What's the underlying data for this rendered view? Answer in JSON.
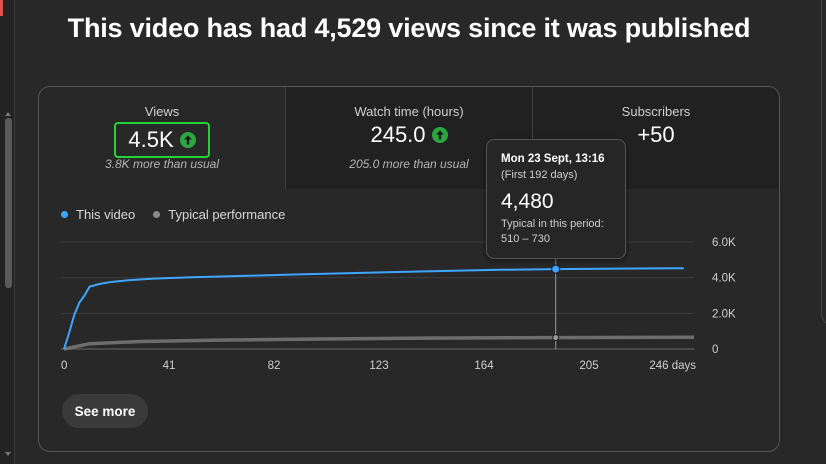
{
  "headline": "This video has had 4,529 views since it was published",
  "metrics": [
    {
      "label": "Views",
      "value": "4.5K",
      "sub": "3.8K more than usual",
      "trend_icon": "arrow-up-circle-icon"
    },
    {
      "label": "Watch time (hours)",
      "value": "245.0",
      "sub": "205.0 more than usual",
      "trend_icon": "arrow-up-circle-icon"
    },
    {
      "label": "Subscribers",
      "value": "+50",
      "sub": ""
    }
  ],
  "legend": {
    "this_video": "This video",
    "typical": "Typical performance"
  },
  "tooltip": {
    "date": "Mon 23 Sept, 13:16",
    "period": "(First 192 days)",
    "value": "4,480",
    "typical_label": "Typical in this period:",
    "typical_range": "510 – 730"
  },
  "see_more": "See more",
  "colors": {
    "this_video": "#3ea6ff",
    "typical": "#8a8a8a",
    "trend_up": "#2ba640",
    "highlight_box": "#22d335"
  },
  "chart_data": {
    "type": "line",
    "xlabel": "",
    "ylabel": "",
    "x_ticks": [
      "0",
      "41",
      "82",
      "123",
      "164",
      "205",
      "246 days"
    ],
    "x_tick_values": [
      0,
      41,
      82,
      123,
      164,
      205,
      246
    ],
    "y_ticks": [
      "0",
      "2.0K",
      "4.0K",
      "6.0K"
    ],
    "y_tick_values": [
      0,
      2000,
      4000,
      6000
    ],
    "xlim": [
      0,
      246
    ],
    "ylim": [
      0,
      6000
    ],
    "grid": true,
    "legend": "top-left",
    "hover_x": 192,
    "series": [
      {
        "name": "This video",
        "x": [
          0,
          2,
          4,
          6,
          8,
          10,
          14,
          18,
          25,
          35,
          50,
          70,
          90,
          110,
          130,
          150,
          170,
          192,
          210,
          230,
          242
        ],
        "y": [
          0,
          900,
          1900,
          2600,
          3000,
          3500,
          3650,
          3750,
          3850,
          3950,
          4020,
          4100,
          4180,
          4250,
          4320,
          4380,
          4440,
          4480,
          4500,
          4520,
          4529
        ]
      },
      {
        "name": "Typical performance",
        "x": [
          0,
          10,
          30,
          60,
          100,
          140,
          192,
          246
        ],
        "y": [
          0,
          300,
          420,
          500,
          560,
          610,
          640,
          660
        ]
      }
    ]
  }
}
